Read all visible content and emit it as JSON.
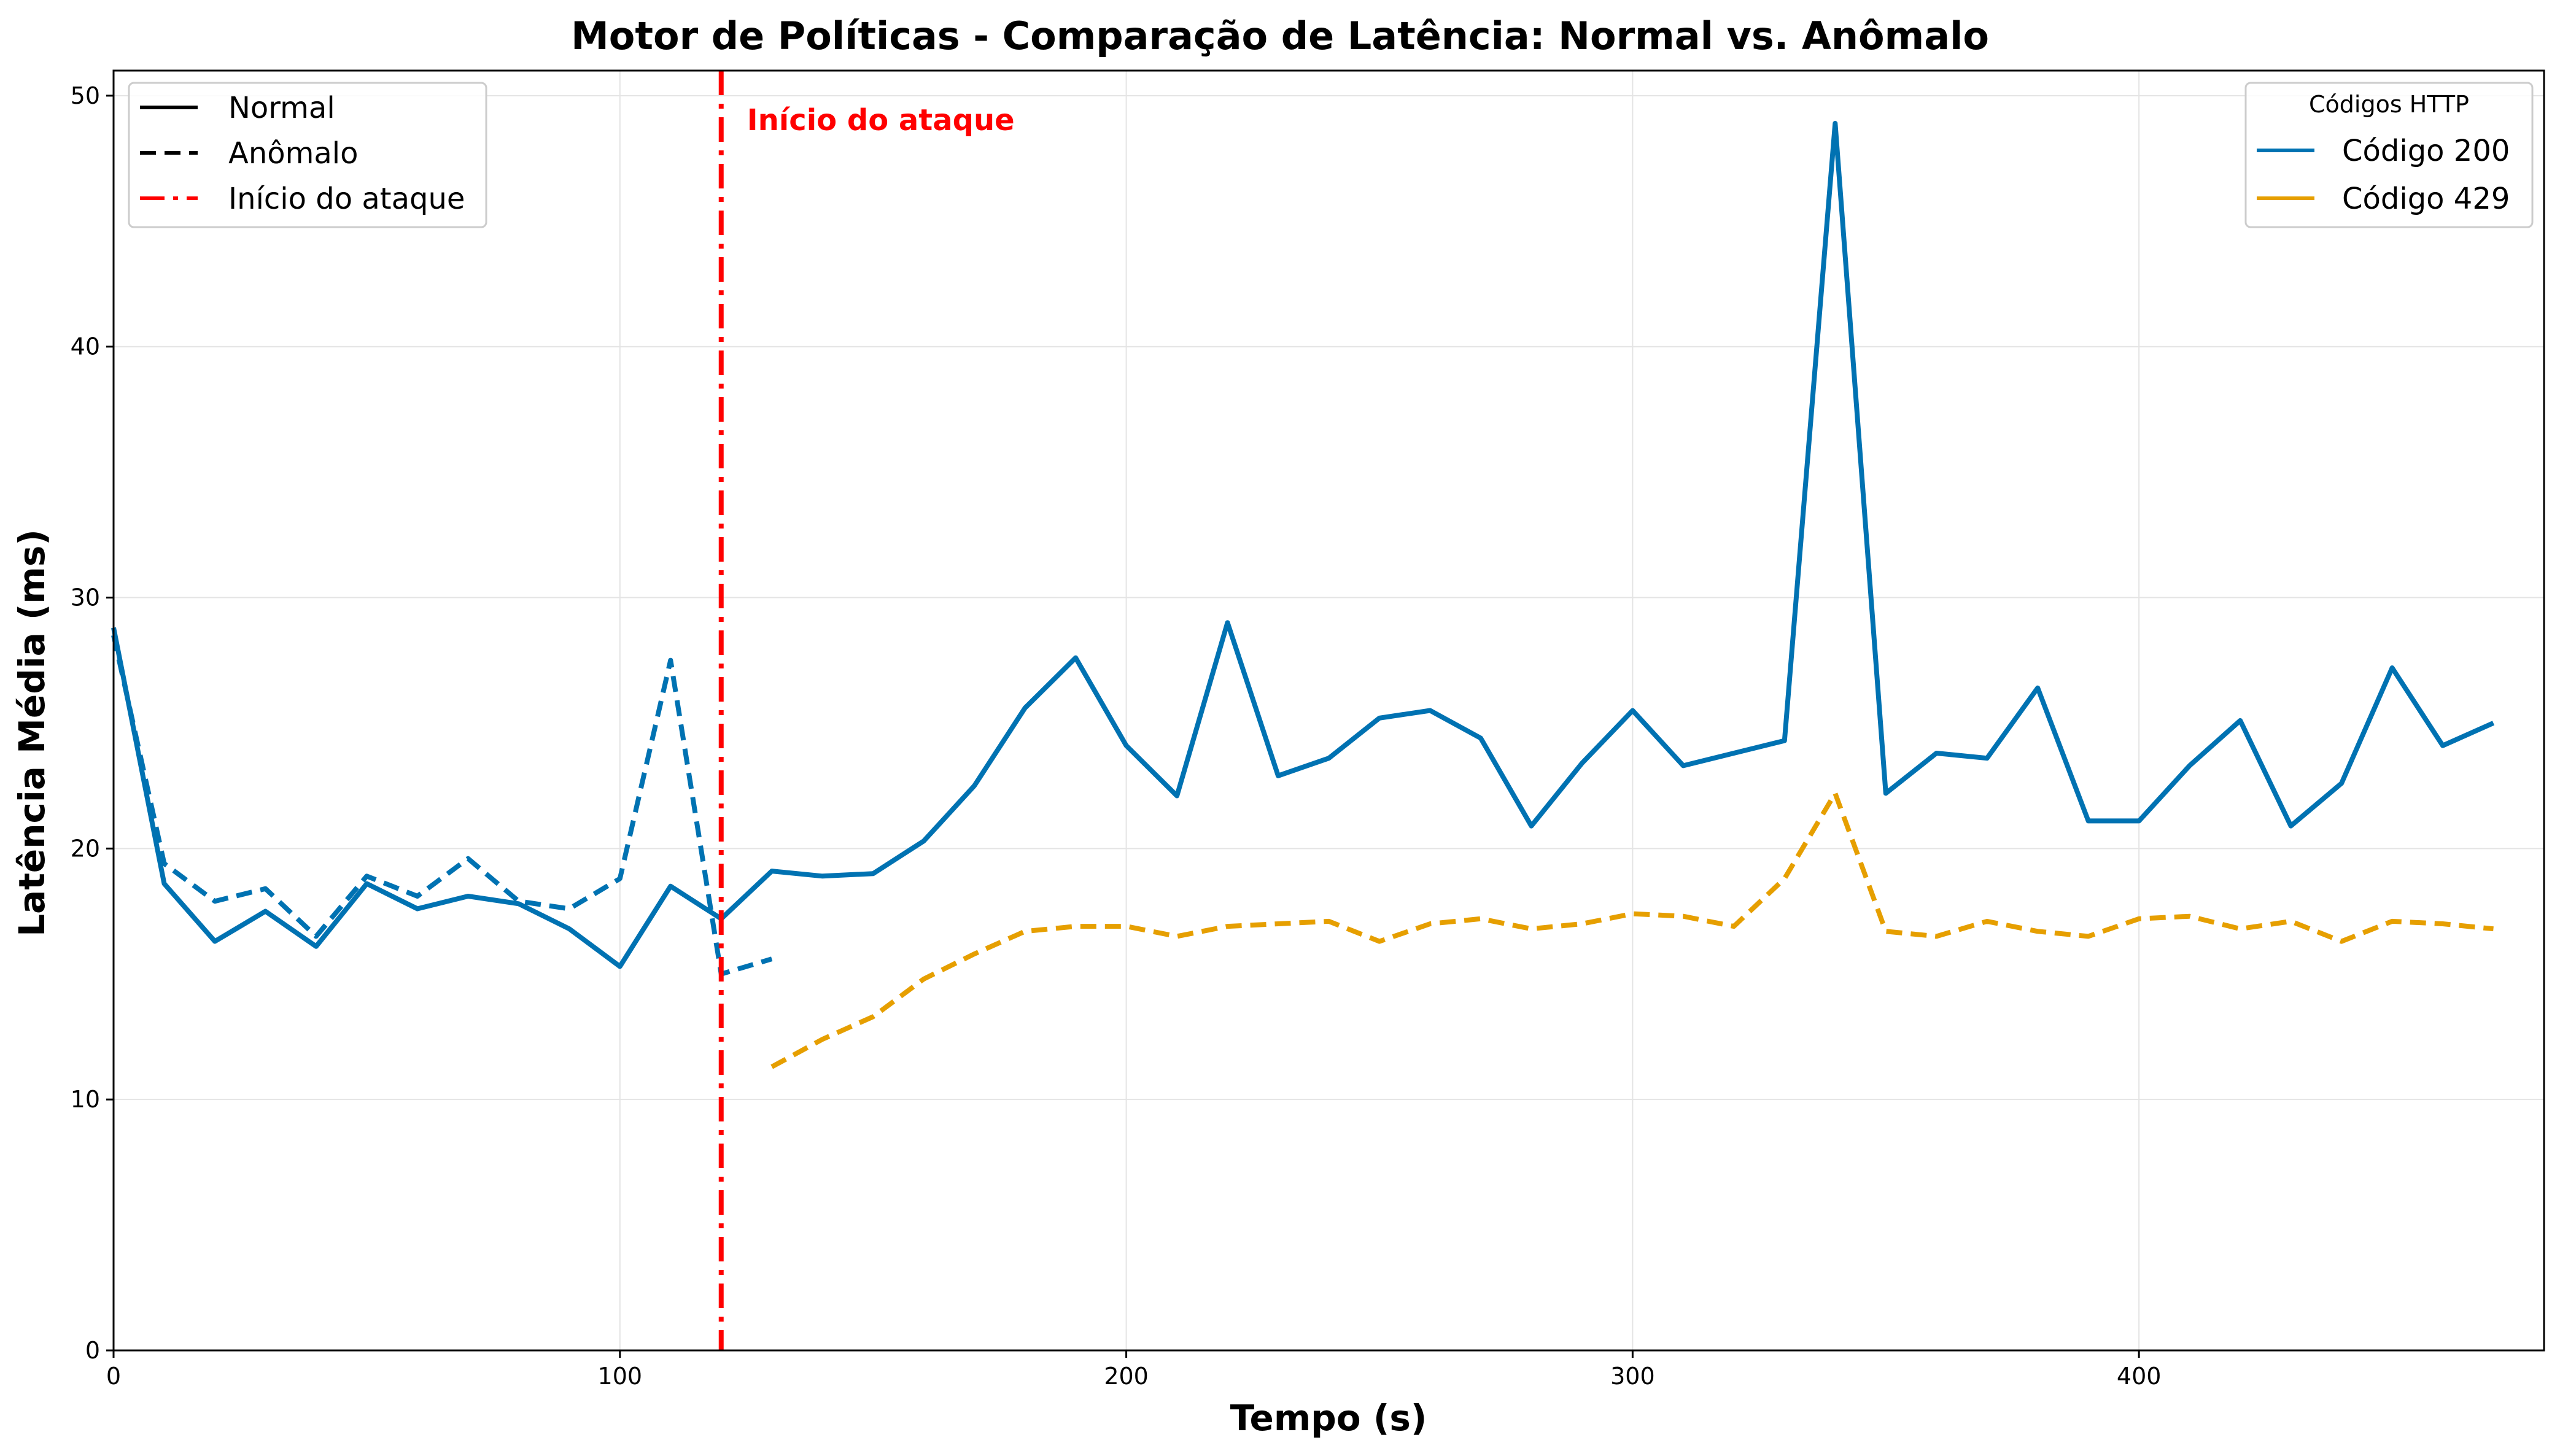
{
  "chart_data": {
    "type": "line",
    "title": "Motor de Políticas - Comparação de Latência: Normal vs. Anômalo",
    "xlabel": "Tempo (s)",
    "ylabel": "Latência Média (ms)",
    "xlim": [
      0,
      480
    ],
    "ylim": [
      0,
      51
    ],
    "xticks": [
      0,
      100,
      200,
      300,
      400
    ],
    "yticks": [
      0,
      10,
      20,
      30,
      40,
      50
    ],
    "grid": true,
    "colors": {
      "code200": "#0072B2",
      "code429": "#E69F00",
      "attack": "#ff0000"
    },
    "attack_start": {
      "x": 120,
      "label": "Início do ataque"
    },
    "series": [
      {
        "name": "Código 200",
        "style": "Normal",
        "color": "#0072B2",
        "x": [
          0,
          10,
          20,
          30,
          40,
          50,
          60,
          70,
          80,
          90,
          100,
          110,
          120,
          130,
          140,
          150,
          160,
          170,
          180,
          190,
          200,
          210,
          220,
          230,
          240,
          250,
          260,
          270,
          280,
          290,
          300,
          310,
          320,
          330,
          340,
          350,
          360,
          370,
          380,
          390,
          400,
          410,
          420,
          430,
          440,
          450,
          460,
          470
        ],
        "y": [
          28.8,
          18.6,
          16.3,
          17.5,
          16.1,
          18.6,
          17.6,
          18.1,
          17.8,
          16.8,
          15.3,
          18.5,
          17.2,
          19.1,
          18.9,
          19.0,
          20.3,
          22.5,
          25.6,
          27.6,
          24.1,
          22.1,
          29.0,
          22.9,
          23.6,
          25.2,
          25.5,
          24.4,
          20.9,
          23.4,
          25.5,
          23.3,
          23.8,
          24.3,
          48.9,
          22.2,
          23.8,
          23.6,
          26.4,
          21.1,
          21.1,
          23.3,
          25.1,
          20.9,
          22.6,
          27.2,
          24.1,
          25.0
        ]
      },
      {
        "name": "Código 200",
        "style": "Anômalo",
        "color": "#0072B2",
        "x": [
          0,
          10,
          20,
          30,
          40,
          50,
          60,
          70,
          80,
          90,
          100,
          110,
          120,
          130
        ],
        "y": [
          28.5,
          19.4,
          17.9,
          18.4,
          16.5,
          18.9,
          18.1,
          19.6,
          17.9,
          17.6,
          18.8,
          27.5,
          15.0,
          15.6
        ]
      },
      {
        "name": "Código 429",
        "style": "Anômalo",
        "color": "#E69F00",
        "x": [
          130,
          140,
          150,
          160,
          170,
          180,
          190,
          200,
          210,
          220,
          230,
          240,
          250,
          260,
          270,
          280,
          290,
          300,
          310,
          320,
          330,
          340,
          350,
          360,
          370,
          380,
          390,
          400,
          410,
          420,
          430,
          440,
          450,
          460,
          470
        ],
        "y": [
          11.3,
          12.4,
          13.3,
          14.8,
          15.8,
          16.7,
          16.9,
          16.9,
          16.5,
          16.9,
          17.0,
          17.1,
          16.3,
          17.0,
          17.2,
          16.8,
          17.0,
          17.4,
          17.3,
          16.9,
          18.8,
          22.2,
          16.7,
          16.5,
          17.1,
          16.7,
          16.5,
          17.2,
          17.3,
          16.8,
          17.1,
          16.3,
          17.1,
          17.0,
          16.8
        ]
      }
    ],
    "legend_style": {
      "placement": "top-left",
      "entries": [
        {
          "label": "Normal",
          "dash": "solid"
        },
        {
          "label": "Anômalo",
          "dash": "dashed"
        },
        {
          "label": "Início do ataque",
          "dash": "dashdot"
        }
      ]
    },
    "legend_codes": {
      "placement": "top-right",
      "title": "Códigos HTTP",
      "entries": [
        {
          "label": "Código 200",
          "color": "#0072B2"
        },
        {
          "label": "Código 429",
          "color": "#E69F00"
        }
      ]
    }
  }
}
